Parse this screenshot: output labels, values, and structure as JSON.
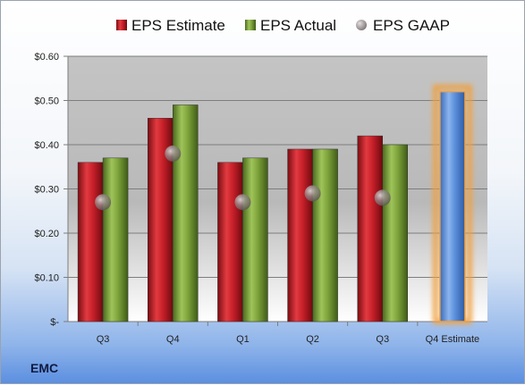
{
  "company": "EMC",
  "chart_data": {
    "type": "bar",
    "categories": [
      "Q3",
      "Q4",
      "Q1",
      "Q2",
      "Q3",
      "Q4 Estimate"
    ],
    "series": [
      {
        "name": "EPS Estimate",
        "color": "#c8202a",
        "values": [
          0.36,
          0.46,
          0.36,
          0.39,
          0.42,
          null
        ]
      },
      {
        "name": "EPS Actual",
        "color": "#7ea33b",
        "values": [
          0.37,
          0.49,
          0.37,
          0.39,
          0.4,
          null
        ]
      },
      {
        "name": "EPS GAAP",
        "color": "#9a9a9a",
        "marker": "circle",
        "values": [
          0.27,
          0.38,
          0.27,
          0.29,
          0.28,
          null
        ]
      }
    ],
    "forecast": {
      "category": "Q4 Estimate",
      "value": 0.52,
      "color": "#5b8fdc",
      "glow": "#f0a040"
    },
    "y_ticks": [
      "$-",
      "$0.10",
      "$0.20",
      "$0.30",
      "$0.40",
      "$0.50",
      "$0.60"
    ],
    "ylim": [
      0,
      0.6
    ],
    "grid": true,
    "legend_position": "top"
  }
}
